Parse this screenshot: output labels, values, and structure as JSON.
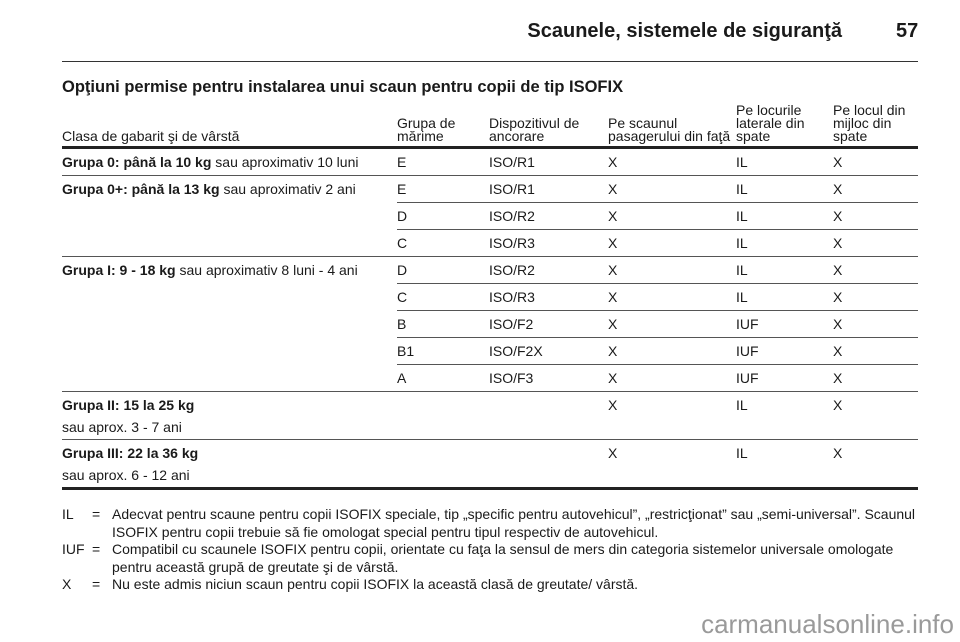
{
  "header": {
    "title": "Scaunele, sistemele de siguranţă",
    "page": "57"
  },
  "section_title": "Opţiuni permise pentru instalarea unui scaun pentru copii de tip ISOFIX",
  "table": {
    "headers": [
      "Clasa de gabarit şi de vârstă",
      "Grupa de mărime",
      "Dispozitivul de ancorare",
      "Pe scaunul pasagerului din faţă",
      "Pe locurile laterale din spate",
      "Pe locul din mijloc din spate"
    ],
    "groups": [
      {
        "bold": "Grupa 0: până la 10 kg",
        "rest": " sau aproximativ 10 luni",
        "rows": [
          [
            "E",
            "ISO/R1",
            "X",
            "IL",
            "X"
          ]
        ]
      },
      {
        "bold": "Grupa 0+: până la 13 kg",
        "rest": " sau aproximativ 2 ani",
        "rows": [
          [
            "E",
            "ISO/R1",
            "X",
            "IL",
            "X"
          ],
          [
            "D",
            "ISO/R2",
            "X",
            "IL",
            "X"
          ],
          [
            "C",
            "ISO/R3",
            "X",
            "IL",
            "X"
          ]
        ]
      },
      {
        "bold": "Grupa I: 9 - 18 kg",
        "rest": " sau aproximativ 8 luni - 4 ani",
        "rows": [
          [
            "D",
            "ISO/R2",
            "X",
            "IL",
            "X"
          ],
          [
            "C",
            "ISO/R3",
            "X",
            "IL",
            "X"
          ],
          [
            "B",
            "ISO/F2",
            "X",
            "IUF",
            "X"
          ],
          [
            "B1",
            "ISO/F2X",
            "X",
            "IUF",
            "X"
          ],
          [
            "A",
            "ISO/F3",
            "X",
            "IUF",
            "X"
          ]
        ]
      },
      {
        "bold": "Grupa II: 15 la 25 kg",
        "rest": "sau aprox. 3 - 7 ani",
        "rows": [
          [
            "",
            "",
            "X",
            "IL",
            "X"
          ]
        ]
      },
      {
        "bold": "Grupa III: 22 la 36 kg",
        "rest": "sau aprox. 6 - 12 ani",
        "rows": [
          [
            "",
            "",
            "X",
            "IL",
            "X"
          ]
        ]
      }
    ]
  },
  "legend": [
    {
      "key": "IL",
      "eq": "=",
      "text": "Adecvat pentru scaune pentru copii ISOFIX speciale, tip „specific pentru autovehicul”, „restricţionat” sau „semi-universal”. Scaunul ISOFIX pentru copii trebuie să fie omologat special pentru tipul respectiv de autovehicul."
    },
    {
      "key": "IUF",
      "eq": "=",
      "text": "Compatibil cu scaunele ISOFIX pentru copii, orientate cu faţa la sensul de mers din categoria sistemelor universale omologate pentru această grupă de greutate şi de vârstă."
    },
    {
      "key": "X",
      "eq": "=",
      "text": "Nu este admis niciun scaun pentru copii ISOFIX la această clasă de greutate/ vârstă."
    }
  ],
  "watermark": "carmanualsonline.info"
}
